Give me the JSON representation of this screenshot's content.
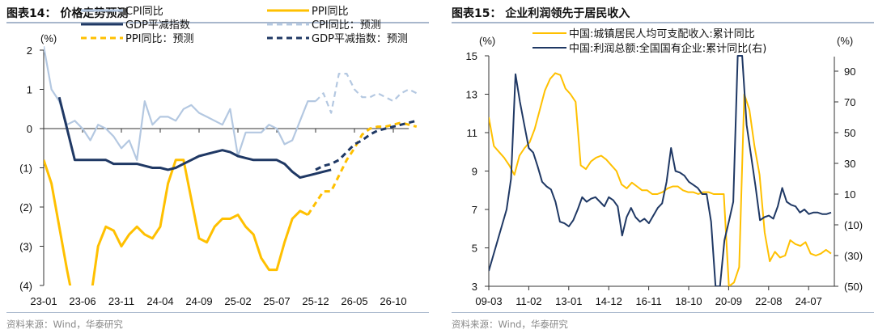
{
  "colors": {
    "cpi": "#b4c8e1",
    "ppi": "#ffc000",
    "gdp": "#1f3864",
    "income": "#ffc000",
    "profit": "#1f3864",
    "axis": "#333333",
    "rule": "#a8b7cc"
  },
  "left_panel": {
    "title": "图表14： 价格走势预测",
    "source": "资料来源：Wind，华泰研究",
    "unit_label": "(%)"
  },
  "right_panel": {
    "title": "图表15： 企业利润领先于居民收入",
    "source": "资料来源：Wind，华泰研究",
    "unit_label_left": "(%)",
    "unit_label_right": "(%)"
  },
  "chart_data": [
    {
      "type": "line",
      "title": "价格走势预测",
      "xlabel": "",
      "ylabel": "(%)",
      "ylim": [
        -4,
        2
      ],
      "yticks": [
        2,
        1,
        0,
        -1,
        -2,
        -3,
        -4
      ],
      "ytick_labels": [
        "2",
        "1",
        "0",
        "(1)",
        "(2)",
        "(3)",
        "(4)"
      ],
      "xtick_labels": [
        "23-01",
        "23-06",
        "23-11",
        "24-04",
        "24-09",
        "25-02",
        "25-07",
        "25-12",
        "26-05",
        "26-10"
      ],
      "x_start": "23-01",
      "x_months": 48,
      "grid": false,
      "legend_position": "top",
      "series": [
        {
          "name": "CPI同比",
          "style": "solid",
          "color_key": "cpi",
          "start_index": 0,
          "values": [
            2.1,
            1.0,
            0.7,
            0.1,
            0.2,
            0.0,
            -0.3,
            0.1,
            0.0,
            -0.2,
            -0.5,
            -0.3,
            -0.8,
            0.7,
            0.1,
            0.3,
            0.3,
            0.2,
            0.5,
            0.6,
            0.4,
            0.3,
            0.2,
            0.1,
            0.5,
            -0.7,
            -0.1,
            -0.1,
            -0.1,
            0.1,
            0.0,
            -0.4,
            -0.3,
            0.2,
            0.7,
            0.7
          ]
        },
        {
          "name": "PPI同比",
          "style": "solid",
          "color_key": "ppi",
          "start_index": 0,
          "values": [
            -0.8,
            -1.4,
            -2.5,
            -3.6,
            -4.6,
            -5.4,
            -4.4,
            -3.0,
            -2.5,
            -2.6,
            -3.0,
            -2.7,
            -2.5,
            -2.7,
            -2.8,
            -2.5,
            -1.4,
            -0.8,
            -0.8,
            -1.8,
            -2.8,
            -2.9,
            -2.5,
            -2.3,
            -2.3,
            -2.2,
            -2.5,
            -2.7,
            -3.3,
            -3.6,
            -3.6,
            -2.9,
            -2.3,
            -2.1,
            -2.2
          ]
        },
        {
          "name": "GDP平减指数",
          "style": "solid",
          "color_key": "gdp",
          "start_index": 2,
          "values": [
            0.8,
            0.0,
            -0.8,
            -0.8,
            -0.8,
            -0.8,
            -0.8,
            -0.9,
            -0.9,
            -0.9,
            -0.9,
            -0.95,
            -1.0,
            -1.0,
            -1.05,
            -1.0,
            -0.9,
            -0.8,
            -0.7,
            -0.65,
            -0.6,
            -0.55,
            -0.6,
            -0.7,
            -0.75,
            -0.8,
            -0.8,
            -0.8,
            -0.8,
            -0.9,
            -1.1,
            -1.25,
            -1.2,
            -1.15,
            -1.1,
            -1.05
          ]
        },
        {
          "name": "CPI同比：预测",
          "style": "dashed",
          "color_key": "cpi",
          "start_index": 35,
          "values": [
            0.7,
            0.9,
            0.4,
            1.4,
            1.4,
            1.0,
            0.8,
            0.8,
            0.9,
            0.8,
            0.7,
            0.9,
            1.0,
            0.9,
            0.75,
            1.0
          ]
        },
        {
          "name": "PPI同比：预测",
          "style": "dashed",
          "color_key": "ppi",
          "start_index": 34,
          "values": [
            -2.2,
            -1.9,
            -1.6,
            -1.6,
            -1.2,
            -0.8,
            -0.5,
            -0.15,
            0.0,
            0.05,
            0.05,
            0.1,
            0.15,
            0.1,
            0.05
          ]
        },
        {
          "name": "GDP平减指数：预测",
          "style": "dashed",
          "color_key": "gdp",
          "start_index": 35,
          "values": [
            -1.05,
            -0.95,
            -0.9,
            -0.8,
            -0.6,
            -0.4,
            -0.3,
            -0.15,
            -0.05,
            0.0,
            0.05,
            0.1,
            0.15,
            0.2
          ]
        }
      ]
    },
    {
      "type": "line",
      "title": "企业利润领先于居民收入",
      "xlabel": "",
      "ylabel": "(%)",
      "ylabel_right": "(%)",
      "ylim": [
        3,
        15
      ],
      "ylim_right": [
        -50,
        100
      ],
      "yticks": [
        15,
        13,
        11,
        9,
        7,
        5,
        3
      ],
      "ytick_labels": [
        "15",
        "13",
        "11",
        "9",
        "7",
        "5",
        "3"
      ],
      "yticks_right": [
        90,
        70,
        50,
        30,
        10,
        -10,
        -30,
        -50
      ],
      "ytick_labels_right": [
        "90",
        "70",
        "50",
        "30",
        "10",
        "(10)",
        "(30)",
        "(50)"
      ],
      "xtick_labels": [
        "09-03",
        "11-02",
        "13-01",
        "14-12",
        "16-11",
        "18-10",
        "20-09",
        "22-08",
        "24-07"
      ],
      "x_start": "09-03",
      "x_months": 197,
      "grid": false,
      "legend_position": "top",
      "series": [
        {
          "name": "中国:城镇居民人均可支配收入:累计同比",
          "axis": "left",
          "color_key": "income",
          "sample_step_months": 3,
          "values": [
            11.8,
            10.3,
            10.0,
            9.7,
            9.3,
            8.8,
            9.8,
            10.2,
            10.5,
            11.2,
            12.2,
            13.2,
            13.8,
            14.1,
            14.0,
            13.3,
            13.0,
            12.6,
            9.3,
            9.1,
            9.5,
            9.7,
            9.8,
            9.6,
            9.3,
            9.0,
            8.3,
            8.1,
            8.4,
            8.2,
            8.0,
            8.0,
            7.8,
            7.8,
            7.9,
            8.1,
            8.2,
            8.2,
            8.0,
            7.9,
            7.9,
            7.8,
            7.9,
            7.9,
            7.8,
            7.8,
            7.8,
            3.0,
            3.2,
            4.0,
            13.0,
            12.2,
            10.3,
            8.8,
            5.8,
            4.3,
            4.8,
            4.5,
            4.6,
            5.4,
            5.2,
            5.1,
            5.3,
            4.7,
            4.6,
            4.7,
            4.9,
            4.7
          ]
        },
        {
          "name": "中国:利润总额:全国国有企业:累计同比(右)",
          "axis": "right",
          "color_key": "profit",
          "sample_step_months": 3,
          "values": [
            -40,
            -30,
            -20,
            -10,
            0,
            20,
            88,
            70,
            55,
            40,
            37,
            28,
            18,
            15,
            13,
            5,
            -8,
            -9,
            -11,
            -7,
            0,
            8,
            5,
            7,
            8,
            5,
            2,
            8,
            6,
            2,
            -17,
            -5,
            1,
            -5,
            -8,
            -6,
            -9,
            -4,
            1,
            4,
            18,
            40,
            25,
            24,
            22,
            18,
            16,
            14,
            10,
            10,
            -8,
            -50,
            -50,
            -20,
            -8,
            5,
            100,
            100,
            55,
            35,
            15,
            -7,
            -5,
            -4,
            -6,
            2,
            14,
            5,
            3,
            2,
            -2,
            0,
            -3,
            -2,
            -2,
            -3,
            -3,
            -2
          ]
        }
      ]
    }
  ]
}
